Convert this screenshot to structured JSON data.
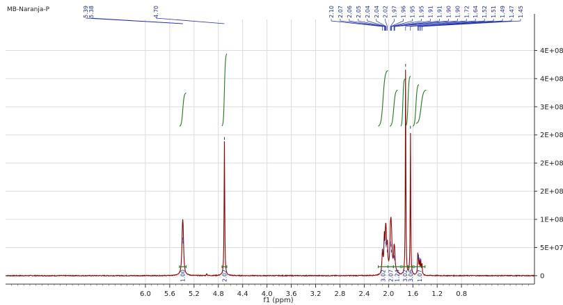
{
  "chart_data": {
    "type": "line",
    "title": "MB-Naranja-P",
    "xlabel": "f1 (ppm)",
    "ylabel": "",
    "xlim": [
      8.3,
      -0.4
    ],
    "ylim": [
      -15000000.0,
      455000000.0
    ],
    "grid": true,
    "x_ticks": [
      "6.0",
      "5.6",
      "5.2",
      "4.8",
      "4.4",
      "4.0",
      "3.6",
      "3.2",
      "2.8",
      "2.4",
      "2.0",
      "1.6",
      "1.2",
      "0.8"
    ],
    "x_tick_values": [
      6.0,
      5.6,
      5.2,
      4.8,
      4.4,
      4.0,
      3.6,
      3.2,
      2.8,
      2.4,
      2.0,
      1.6,
      1.2,
      0.8
    ],
    "y_ticks": [
      "4E+08",
      "4E+08",
      "3E+08",
      "2E+08",
      "2E+08",
      "2E+08",
      "1E+08",
      "5E+07",
      "0"
    ],
    "y_tick_values": [
      400000000.0,
      350000000.0,
      300000000.0,
      250000000.0,
      200000000.0,
      150000000.0,
      100000000.0,
      50000000.0,
      0
    ],
    "series": [
      {
        "color": "#8b0000",
        "peaks": [
          {
            "ppm": 5.39,
            "height": 62000000.0,
            "width": 0.012
          },
          {
            "ppm": 5.38,
            "height": 56000000.0,
            "width": 0.012
          },
          {
            "ppm": 4.7,
            "height": 240000000.0,
            "width": 0.006
          },
          {
            "ppm": 4.99,
            "height": 4000000.0,
            "width": 0.006
          },
          {
            "ppm": 2.1,
            "height": 40000000.0,
            "width": 0.01
          },
          {
            "ppm": 2.07,
            "height": 60000000.0,
            "width": 0.008
          },
          {
            "ppm": 2.05,
            "height": 55000000.0,
            "width": 0.008
          },
          {
            "ppm": 2.04,
            "height": 50000000.0,
            "width": 0.008
          },
          {
            "ppm": 2.02,
            "height": 40000000.0,
            "width": 0.008
          },
          {
            "ppm": 1.97,
            "height": 55000000.0,
            "width": 0.008
          },
          {
            "ppm": 1.96,
            "height": 50000000.0,
            "width": 0.008
          },
          {
            "ppm": 1.95,
            "height": 40000000.0,
            "width": 0.008
          },
          {
            "ppm": 1.91,
            "height": 30000000.0,
            "width": 0.008
          },
          {
            "ppm": 1.9,
            "height": 26000000.0,
            "width": 0.008
          },
          {
            "ppm": 1.72,
            "height": 370000000.0,
            "width": 0.005
          },
          {
            "ppm": 1.64,
            "height": 260000000.0,
            "width": 0.005
          },
          {
            "ppm": 1.52,
            "height": 30000000.0,
            "width": 0.006
          },
          {
            "ppm": 1.51,
            "height": 28000000.0,
            "width": 0.006
          },
          {
            "ppm": 1.49,
            "height": 26000000.0,
            "width": 0.006
          },
          {
            "ppm": 1.47,
            "height": 24000000.0,
            "width": 0.006
          },
          {
            "ppm": 1.45,
            "height": 20000000.0,
            "width": 0.006
          }
        ]
      }
    ],
    "peak_labels_left": [
      "5.39",
      "5.38",
      "4.70"
    ],
    "peak_labels_right": [
      "2.10",
      "2.07",
      "2.06",
      "2.05",
      "2.04",
      "2.04",
      "2.02",
      "1.97",
      "1.96",
      "1.95",
      "1.95",
      "1.91",
      "1.91",
      "1.90",
      "1.90",
      "1.72",
      "1.64",
      "1.52",
      "1.51",
      "1.49",
      "1.47",
      "1.45"
    ],
    "integrals": [
      {
        "from": 5.44,
        "to": 5.33,
        "value": "1.00"
      },
      {
        "from": 4.74,
        "to": 4.66,
        "value": "2.02"
      },
      {
        "from": 2.17,
        "to": 2.01,
        "value": "3.02"
      },
      {
        "from": 2.01,
        "to": 1.92,
        "value": "2.07"
      },
      {
        "from": 1.92,
        "to": 1.8,
        "value": "1.24"
      },
      {
        "from": 1.78,
        "to": 1.68,
        "value": "3.02"
      },
      {
        "from": 1.68,
        "to": 1.6,
        "value": "3.06"
      },
      {
        "from": 1.58,
        "to": 1.4,
        "value": "1.07"
      }
    ],
    "integral_curves": [
      {
        "from": 5.44,
        "to": 5.33,
        "y0": 265000000.0,
        "y1": 325000000.0
      },
      {
        "from": 4.74,
        "to": 4.66,
        "y0": 265000000.0,
        "y1": 395000000.0
      },
      {
        "from": 2.17,
        "to": 2.01,
        "y0": 265000000.0,
        "y1": 365000000.0
      },
      {
        "from": 1.98,
        "to": 1.85,
        "y0": 265000000.0,
        "y1": 330000000.0
      },
      {
        "from": 1.8,
        "to": 1.73,
        "y0": 265000000.0,
        "y1": 350000000.0
      },
      {
        "from": 1.72,
        "to": 1.64,
        "y0": 265000000.0,
        "y1": 355000000.0
      },
      {
        "from": 1.6,
        "to": 1.5,
        "y0": 265000000.0,
        "y1": 340000000.0
      },
      {
        "from": 1.55,
        "to": 1.38,
        "y0": 270000000.0,
        "y1": 330000000.0
      }
    ]
  }
}
